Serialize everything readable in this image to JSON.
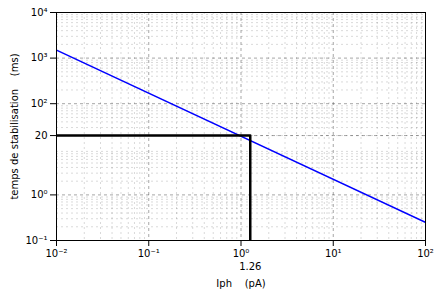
{
  "chart_data": {
    "type": "line",
    "log": true,
    "grid": true,
    "xlabel": "Iph    (pA)",
    "ylabel": "temps de stabilisation    (ms)",
    "xlim": [
      0.01,
      100
    ],
    "ylim": [
      0.1,
      10000
    ],
    "xticks": [
      {
        "value": 0.01,
        "label": "10⁻²"
      },
      {
        "value": 0.1,
        "label": "10⁻¹"
      },
      {
        "value": 1.0,
        "label": "10⁰"
      },
      {
        "value": 10,
        "label": "10¹"
      },
      {
        "value": 100,
        "label": "10²"
      }
    ],
    "yticks": [
      {
        "value": 0.1,
        "label": "10⁻¹"
      },
      {
        "value": 1.0,
        "label": "10⁰"
      },
      20,
      {
        "value": 100,
        "label": "10²"
      },
      {
        "value": 1000,
        "label": "10³"
      },
      {
        "value": 10000,
        "label": "10⁴"
      }
    ],
    "series": [
      {
        "color": "blue",
        "x": [
          0.01,
          100
        ],
        "values": [
          1500,
          0.25
        ]
      },
      {
        "color": "black",
        "x": [
          0.01,
          1.26,
          1.26
        ],
        "values": [
          20,
          20,
          0.1
        ]
      }
    ],
    "annotations": [
      {
        "text": "1.26",
        "x": 1.26
      }
    ]
  }
}
